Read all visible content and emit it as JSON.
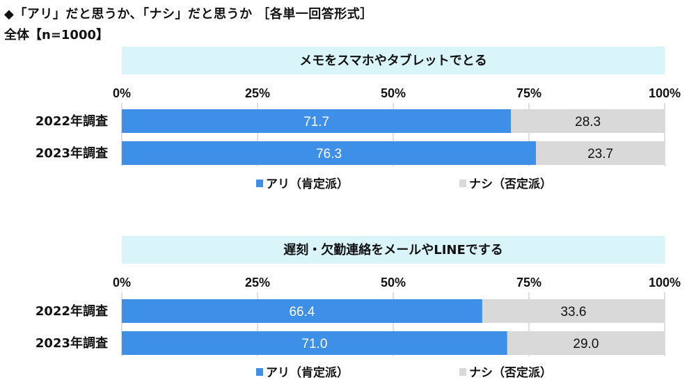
{
  "header": {
    "title": "◆「アリ」だと思うか、「ナシ」だと思うか ［各単一回答形式］",
    "subtitle": "全体【n=1000】"
  },
  "colors": {
    "ari": "#3d8fe8",
    "nashi": "#d9d9d9",
    "panel_header": "#d9f5f9",
    "gridline": "#bfbfbf"
  },
  "chart_data": [
    {
      "type": "bar",
      "orientation": "horizontal",
      "stacked": true,
      "title": "メモをスマホやタブレットでとる",
      "xlim": [
        0,
        100
      ],
      "tick_labels": [
        "0%",
        "25%",
        "50%",
        "75%",
        "100%"
      ],
      "categories": [
        "2022年調査",
        "2023年調査"
      ],
      "series": [
        {
          "name": "アリ（肯定派）",
          "values": [
            71.7,
            76.3
          ],
          "labels": [
            "71.7",
            "76.3"
          ]
        },
        {
          "name": "ナシ（否定派）",
          "values": [
            28.3,
            23.7
          ],
          "labels": [
            "28.3",
            "23.7"
          ]
        }
      ],
      "legend": [
        "アリ（肯定派）",
        "ナシ（否定派）"
      ],
      "legend_position": "bottom"
    },
    {
      "type": "bar",
      "orientation": "horizontal",
      "stacked": true,
      "title": "遅刻・欠勤連絡をメールやLINEでする",
      "xlim": [
        0,
        100
      ],
      "tick_labels": [
        "0%",
        "25%",
        "50%",
        "75%",
        "100%"
      ],
      "categories": [
        "2022年調査",
        "2023年調査"
      ],
      "series": [
        {
          "name": "アリ（肯定派）",
          "values": [
            66.4,
            71.0
          ],
          "labels": [
            "66.4",
            "71.0"
          ]
        },
        {
          "name": "ナシ（否定派）",
          "values": [
            33.6,
            29.0
          ],
          "labels": [
            "33.6",
            "29.0"
          ]
        }
      ],
      "legend": [
        "アリ（肯定派）",
        "ナシ（否定派）"
      ],
      "legend_position": "bottom"
    }
  ]
}
